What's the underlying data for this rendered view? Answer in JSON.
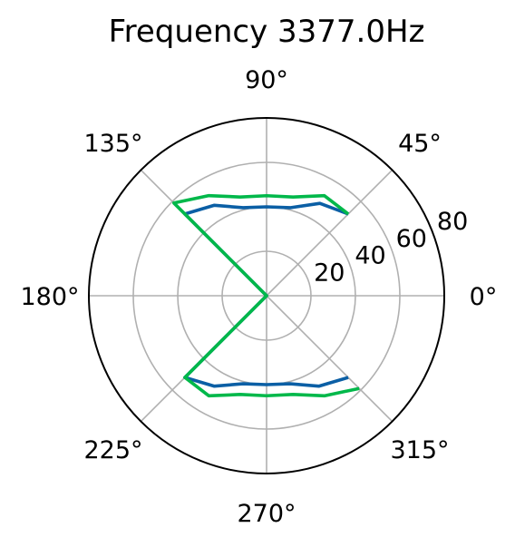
{
  "chart_data": {
    "type": "polar-line",
    "title": "Frequency 3377.0Hz",
    "angle_ticks": [
      {
        "deg": 0,
        "label": "0°"
      },
      {
        "deg": 45,
        "label": "45°"
      },
      {
        "deg": 90,
        "label": "90°"
      },
      {
        "deg": 135,
        "label": "135°"
      },
      {
        "deg": 180,
        "label": "180°"
      },
      {
        "deg": 225,
        "label": "225°"
      },
      {
        "deg": 270,
        "label": "270°"
      },
      {
        "deg": 315,
        "label": "315°"
      }
    ],
    "radial_ticks": [
      {
        "value": 20,
        "label": "20"
      },
      {
        "value": 40,
        "label": "40"
      },
      {
        "value": 60,
        "label": "60"
      },
      {
        "value": 80,
        "label": "80"
      }
    ],
    "rlim": [
      0,
      80
    ],
    "grid": true,
    "series": [
      {
        "color": "#0b5fa5",
        "points": [
          {
            "theta": 45,
            "r": 52
          },
          {
            "theta": 60,
            "r": 48
          },
          {
            "theta": 75,
            "r": 41
          },
          {
            "theta": 90,
            "r": 40
          },
          {
            "theta": 105,
            "r": 41
          },
          {
            "theta": 120,
            "r": 47
          },
          {
            "theta": 135,
            "r": 52
          },
          {
            "theta": 315,
            "r": 0
          },
          {
            "theta": 225,
            "r": 52
          },
          {
            "theta": 240,
            "r": 47
          },
          {
            "theta": 255,
            "r": 41
          },
          {
            "theta": 270,
            "r": 40
          },
          {
            "theta": 285,
            "r": 41
          },
          {
            "theta": 300,
            "r": 47
          },
          {
            "theta": 315,
            "r": 52
          }
        ]
      },
      {
        "color": "#00b84a",
        "points": [
          {
            "theta": 45,
            "r": 52
          },
          {
            "theta": 60,
            "r": 52
          },
          {
            "theta": 75,
            "r": 46
          },
          {
            "theta": 90,
            "r": 45
          },
          {
            "theta": 105,
            "r": 46
          },
          {
            "theta": 120,
            "r": 52
          },
          {
            "theta": 135,
            "r": 59
          },
          {
            "theta": 315,
            "r": 0
          },
          {
            "theta": 225,
            "r": 52
          },
          {
            "theta": 240,
            "r": 52
          },
          {
            "theta": 255,
            "r": 46
          },
          {
            "theta": 270,
            "r": 45
          },
          {
            "theta": 285,
            "r": 46
          },
          {
            "theta": 300,
            "r": 52
          },
          {
            "theta": 315,
            "r": 59
          }
        ]
      }
    ]
  }
}
